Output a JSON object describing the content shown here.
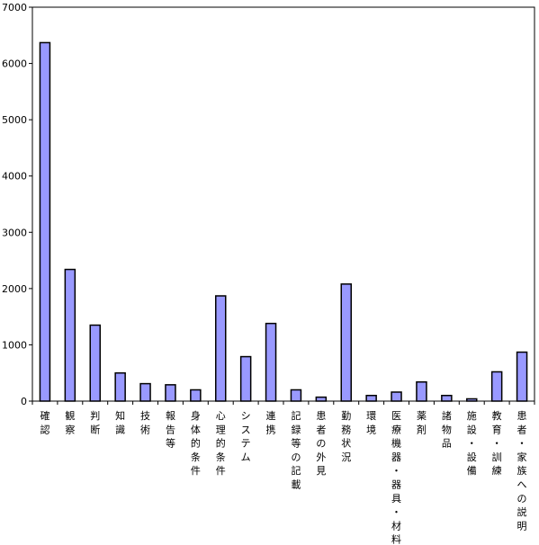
{
  "chart_data": {
    "type": "bar",
    "categories": [
      "確認",
      "観察",
      "判断",
      "知識",
      "技術",
      "報告等",
      "身体的条件",
      "心理的条件",
      "システム",
      "連携",
      "記録等の記載",
      "患者の外見",
      "勤務状況",
      "環境",
      "医療機器・器具・材料",
      "薬剤",
      "諸物品",
      "施設・設備",
      "教育・訓練",
      "患者・家族への説明"
    ],
    "values": [
      6370,
      2340,
      1350,
      500,
      310,
      290,
      200,
      1870,
      790,
      1380,
      200,
      70,
      2080,
      100,
      160,
      340,
      100,
      40,
      520,
      870
    ],
    "title": "",
    "xlabel": "",
    "ylabel": "",
    "ylim": [
      0,
      7000
    ],
    "yticks": [
      0,
      1000,
      2000,
      3000,
      4000,
      5000,
      6000,
      7000
    ],
    "ytick_labels": [
      "0",
      "1000",
      "2000",
      "3000",
      "4000",
      "5000",
      "6000",
      "7000"
    ],
    "bar_color": "#9999ff",
    "grid": false,
    "legend": "none"
  }
}
